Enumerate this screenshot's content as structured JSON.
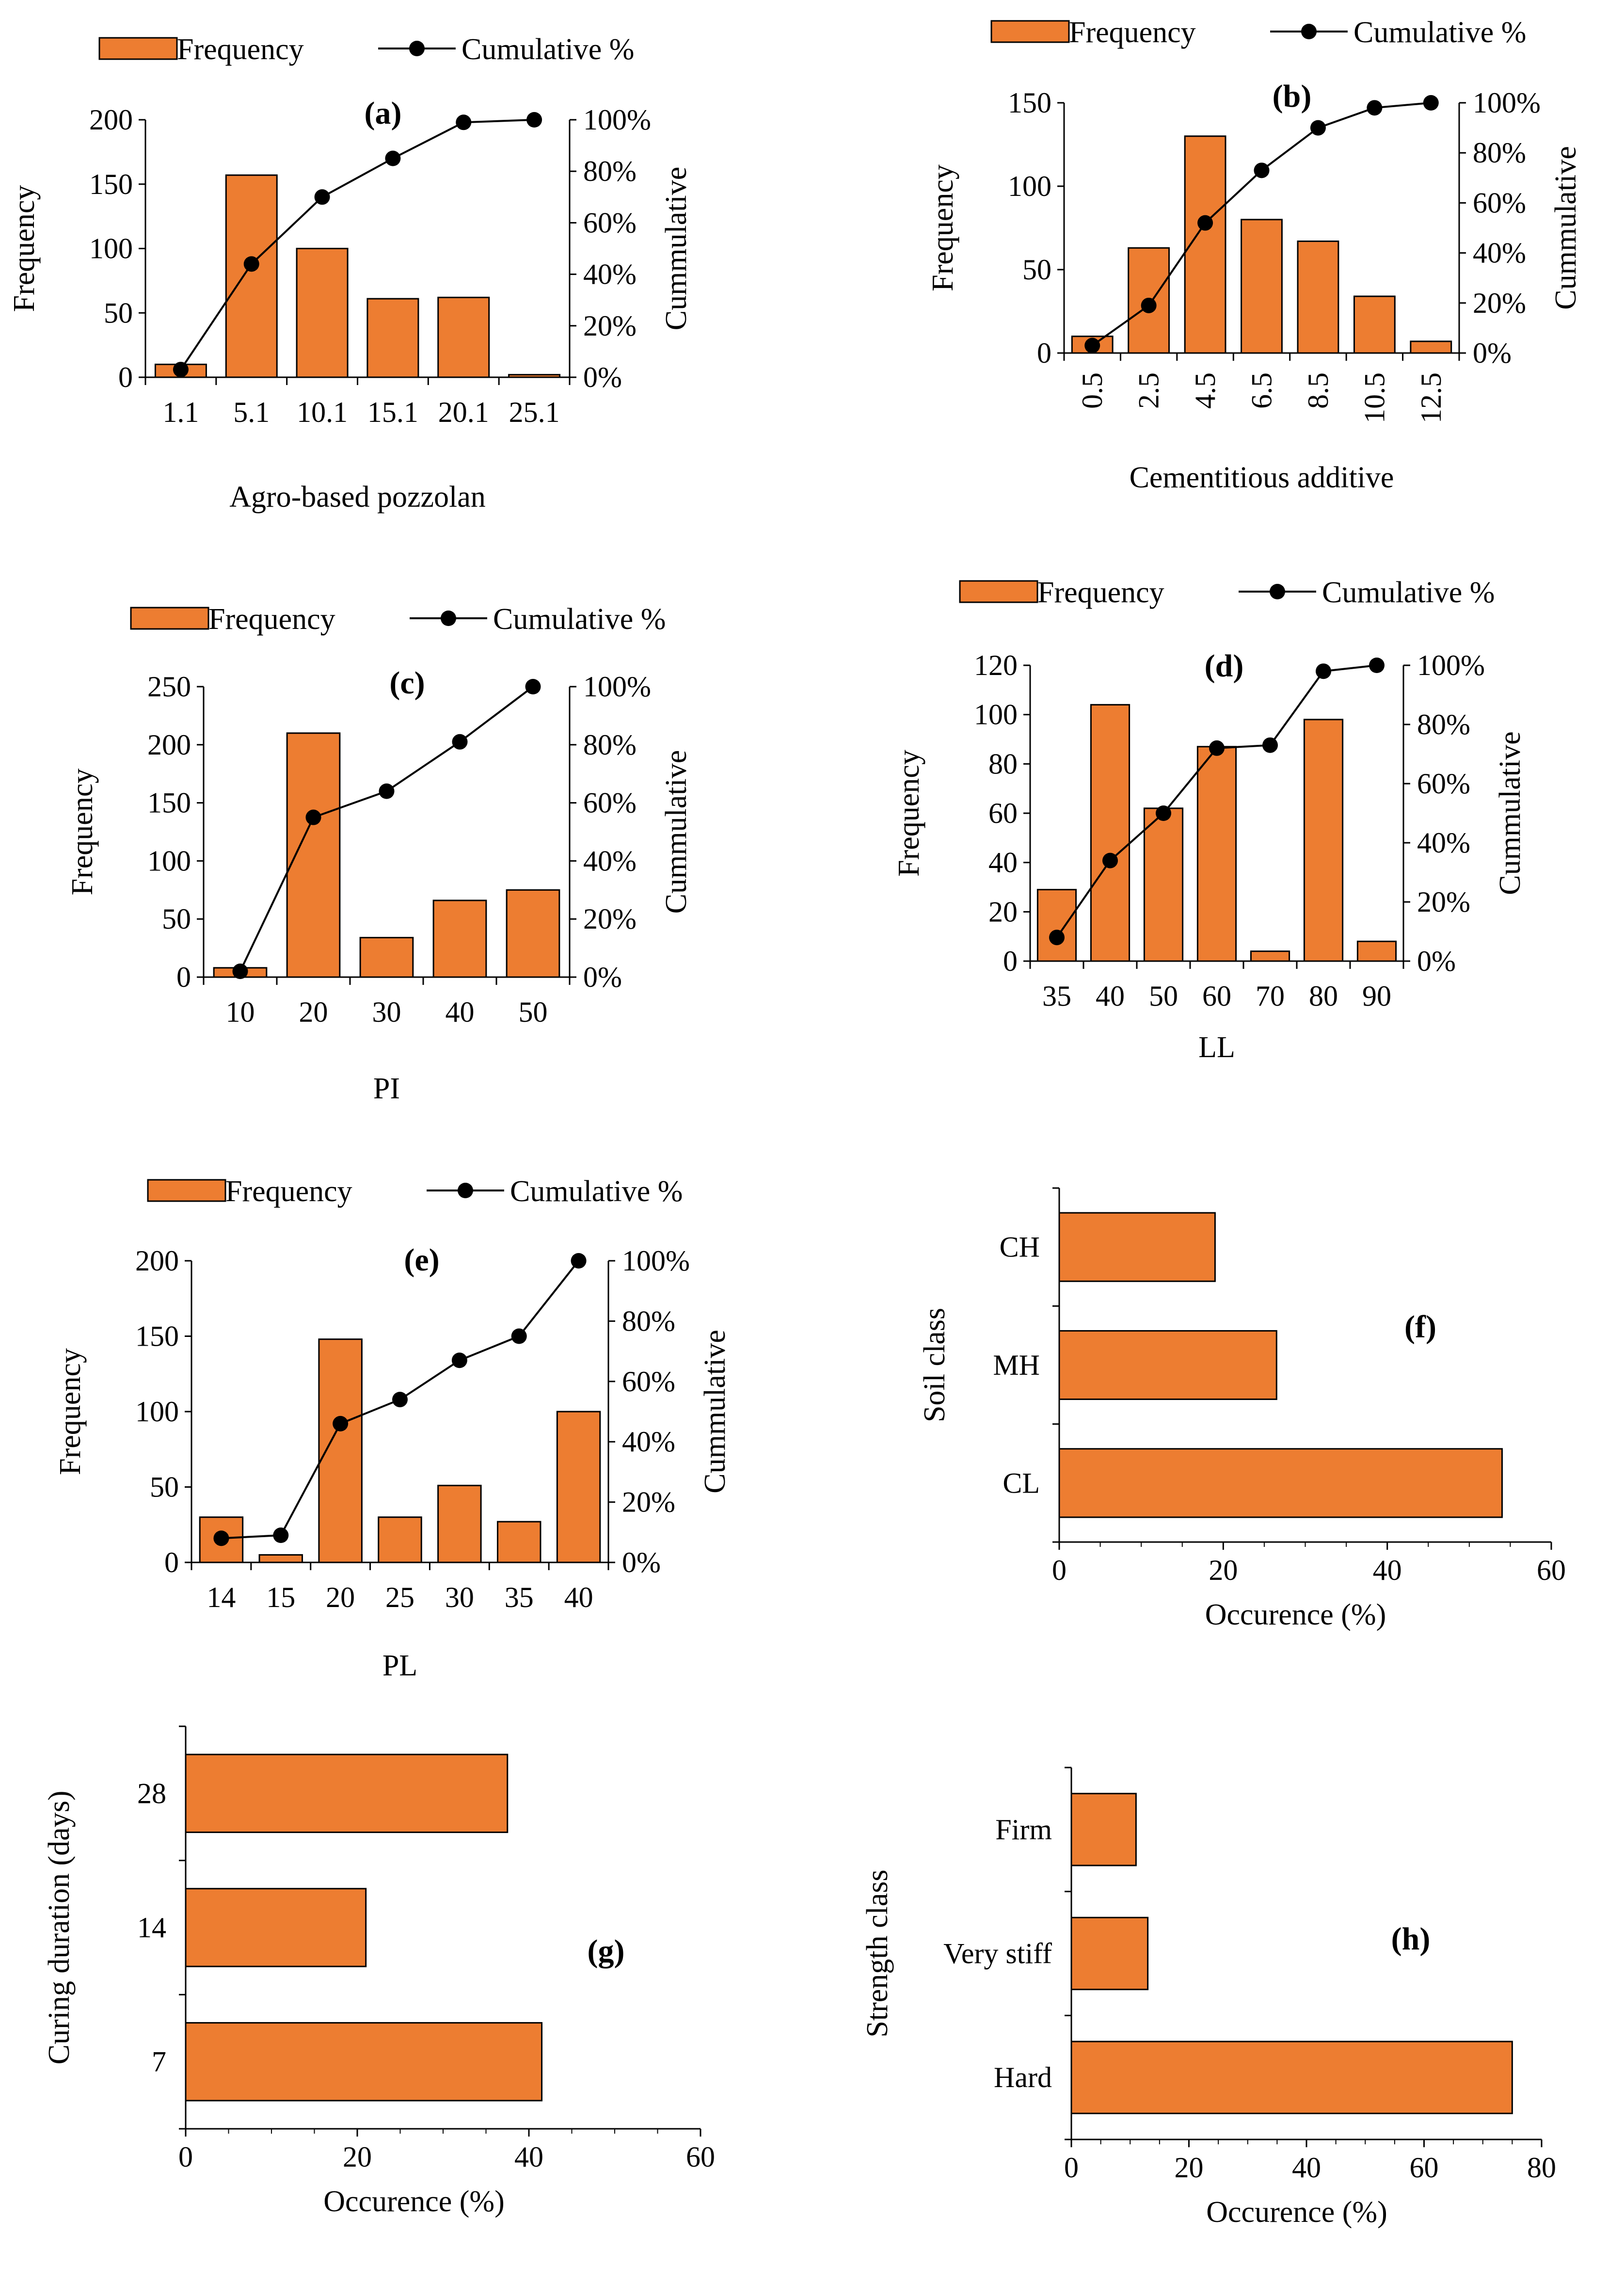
{
  "bar_color": "#ed7d31",
  "bar_stroke": "#000000",
  "line_color": "#000000",
  "legend": {
    "frequency_label": "Frequency",
    "cumulative_label": "Cumulative %"
  },
  "chart_data": [
    {
      "id": "a",
      "type": "bar",
      "label": "(a)",
      "title": "(a)",
      "categories": [
        "1.1",
        "5.1",
        "10.1",
        "15.1",
        "20.1",
        "25.1"
      ],
      "series": [
        {
          "name": "Frequency",
          "values": [
            10,
            157,
            100,
            61,
            62,
            2
          ]
        },
        {
          "name": "Cumulative %",
          "values": [
            3,
            44,
            70,
            85,
            99,
            100
          ]
        }
      ],
      "xlabel": "Agro-based pozzolan",
      "ylabel": "Frequency",
      "y2label": "Cummulative",
      "ylim": [
        0,
        200
      ],
      "y2lim": [
        0,
        100
      ],
      "yticks": [
        "0",
        "50",
        "100",
        "150",
        "200"
      ],
      "y2ticks": [
        "0%",
        "20%",
        "40%",
        "60%",
        "80%",
        "100%"
      ]
    },
    {
      "id": "b",
      "type": "bar",
      "label": "(b)",
      "title": "(b)",
      "categories": [
        "0.5",
        "2.5",
        "4.5",
        "6.5",
        "8.5",
        "10.5",
        "12.5"
      ],
      "series": [
        {
          "name": "Frequency",
          "values": [
            10,
            63,
            130,
            80,
            67,
            34,
            7
          ]
        },
        {
          "name": "Cumulative %",
          "values": [
            3,
            19,
            52,
            73,
            90,
            98,
            100
          ]
        }
      ],
      "xlabel": "Cementitious additive",
      "ylabel": "Frequency",
      "y2label": "Cummulative",
      "ylim": [
        0,
        150
      ],
      "y2lim": [
        0,
        100
      ],
      "yticks": [
        "0",
        "50",
        "100",
        "150"
      ],
      "y2ticks": [
        "0%",
        "20%",
        "40%",
        "60%",
        "80%",
        "100%"
      ]
    },
    {
      "id": "c",
      "type": "bar",
      "label": "(c)",
      "title": "(c)",
      "categories": [
        "10",
        "20",
        "30",
        "40",
        "50"
      ],
      "series": [
        {
          "name": "Frequency",
          "values": [
            8,
            210,
            34,
            66,
            75
          ]
        },
        {
          "name": "Cumulative %",
          "values": [
            2,
            55,
            64,
            81,
            100
          ]
        }
      ],
      "xlabel": "PI",
      "ylabel": "Frequency",
      "y2label": "Cummulative",
      "ylim": [
        0,
        250
      ],
      "y2lim": [
        0,
        100
      ],
      "yticks": [
        "0",
        "50",
        "100",
        "150",
        "200",
        "250"
      ],
      "y2ticks": [
        "0%",
        "20%",
        "40%",
        "60%",
        "80%",
        "100%"
      ]
    },
    {
      "id": "d",
      "type": "bar",
      "label": "(d)",
      "title": "(d)",
      "categories": [
        "35",
        "40",
        "50",
        "60",
        "70",
        "80",
        "90"
      ],
      "series": [
        {
          "name": "Frequency",
          "values": [
            29,
            104,
            62,
            87,
            4,
            98,
            8
          ]
        },
        {
          "name": "Cumulative %",
          "values": [
            8,
            34,
            50,
            72,
            73,
            98,
            100
          ]
        }
      ],
      "xlabel": "LL",
      "ylabel": "Frequency",
      "y2label": "Cummulative",
      "ylim": [
        0,
        120
      ],
      "y2lim": [
        0,
        100
      ],
      "yticks": [
        "0",
        "20",
        "40",
        "60",
        "80",
        "100",
        "120"
      ],
      "y2ticks": [
        "0%",
        "20%",
        "40%",
        "60%",
        "80%",
        "100%"
      ]
    },
    {
      "id": "e",
      "type": "bar",
      "label": "(e)",
      "title": "(e)",
      "categories": [
        "14",
        "15",
        "20",
        "25",
        "30",
        "35",
        "40"
      ],
      "series": [
        {
          "name": "Frequency",
          "values": [
            30,
            5,
            148,
            30,
            51,
            27,
            100
          ]
        },
        {
          "name": "Cumulative %",
          "values": [
            8,
            9,
            46,
            54,
            67,
            75,
            100
          ]
        }
      ],
      "xlabel": "PL",
      "ylabel": "Frequency",
      "y2label": "Cummulative",
      "ylim": [
        0,
        200
      ],
      "y2lim": [
        0,
        100
      ],
      "yticks": [
        "0",
        "50",
        "100",
        "150",
        "200"
      ],
      "y2ticks": [
        "0%",
        "20%",
        "40%",
        "60%",
        "80%",
        "100%"
      ]
    },
    {
      "id": "f",
      "type": "hbar",
      "label": "(f)",
      "title": "(f)",
      "categories": [
        "CL",
        "MH",
        "CH"
      ],
      "values": [
        54,
        26.5,
        19
      ],
      "xlabel": "Occurence (%)",
      "ylabel": "Soil class",
      "xlim": [
        0,
        60
      ],
      "xticks": [
        "0",
        "20",
        "40",
        "60"
      ]
    },
    {
      "id": "g",
      "type": "hbar",
      "label": "(g)",
      "title": "(g)",
      "categories": [
        "7",
        "14",
        "28"
      ],
      "values": [
        41.5,
        21,
        37.5
      ],
      "xlabel": "Occurence (%)",
      "ylabel": "Curing duration (days)",
      "xlim": [
        0,
        60
      ],
      "xticks": [
        "0",
        "20",
        "40",
        "60"
      ]
    },
    {
      "id": "h",
      "type": "hbar",
      "label": "(h)",
      "title": "(h)",
      "categories": [
        "Hard",
        "Very stiff",
        "Firm"
      ],
      "values": [
        75,
        13,
        11
      ],
      "xlabel": "Occurence (%)",
      "ylabel": "Strength class",
      "xlim": [
        0,
        80
      ],
      "xticks": [
        "0",
        "20",
        "40",
        "60",
        "80"
      ]
    }
  ]
}
